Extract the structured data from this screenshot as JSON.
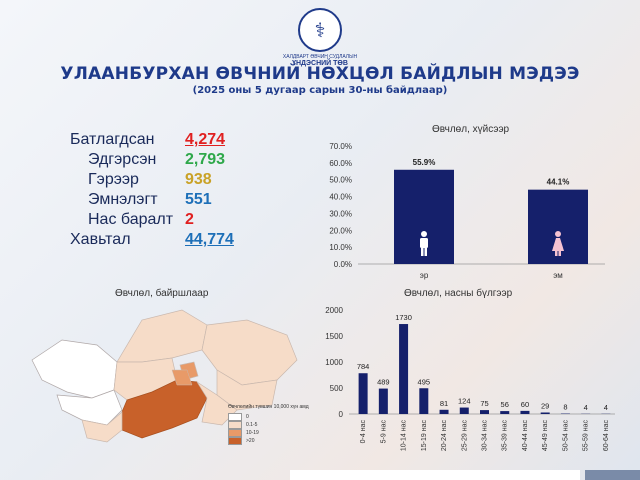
{
  "header": {
    "logo_line1": "ХАЛДВАРТ ӨВЧИН СУДЛАЛЫН",
    "logo_line2": "ҮНДЭСНИЙ ТӨВ",
    "title": "УЛААНБУРХАН ӨВЧНИЙ НӨХЦӨЛ БАЙДЛЫН МЭДЭЭ",
    "subtitle": "(2025 оны 5 дугаар сарын 30-ны байдлаар)"
  },
  "stats": [
    {
      "label": "Батлагдсан",
      "value": "4,274",
      "color": "#e02020",
      "indent": false
    },
    {
      "label": "Эдгэрсэн",
      "value": "2,793",
      "color": "#2ea84a",
      "indent": true
    },
    {
      "label": "Гэрээр",
      "value": "938",
      "color": "#c9a227",
      "indent": true
    },
    {
      "label": "Эмнэлэгт",
      "value": "551",
      "color": "#1d6fb8",
      "indent": true
    },
    {
      "label": "Нас баралт",
      "value": "2",
      "color": "#e02020",
      "indent": true
    },
    {
      "label": "Хавьтал",
      "value": "44,774",
      "color": "#1d6fb8",
      "indent": false
    }
  ],
  "map": {
    "title": "Өвчлөл, байршлаар",
    "legend_title": "Өвчлөлийн түвшин 10,000 хүн амд",
    "legend": [
      {
        "label": "0",
        "color": "#ffffff"
      },
      {
        "label": "0.1-5",
        "color": "#f6dcc8"
      },
      {
        "label": "10-19",
        "color": "#e89a68"
      },
      {
        "label": ">20",
        "color": "#c8612a"
      }
    ]
  },
  "chart_data": [
    {
      "type": "bar",
      "title": "Өвчлөл, хүйсээр",
      "categories": [
        "эр",
        "эм"
      ],
      "values": [
        55.9,
        44.1
      ],
      "data_labels": [
        "55.9%",
        "44.1%"
      ],
      "icons": [
        "male-icon",
        "female-icon"
      ],
      "yticks": [
        "70.0%",
        "60.0%",
        "50.0%",
        "40.0%",
        "30.0%",
        "20.0%",
        "10.0%",
        "0.0%"
      ],
      "ylim": [
        0,
        70
      ],
      "grid": false,
      "bar_color": "#15206b"
    },
    {
      "type": "bar",
      "title": "Өвчлөл, насны бүлгээр",
      "categories": [
        "0-4 нас",
        "5-9 нас",
        "10-14 нас",
        "15-19 нас",
        "20-24 нас",
        "25-29 нас",
        "30-34 нас",
        "35-39 нас",
        "40-44 нас",
        "45-49 нас",
        "50-54 нас",
        "55-59 нас",
        "60-64 нас"
      ],
      "values": [
        784,
        489,
        1730,
        495,
        81,
        124,
        75,
        56,
        60,
        29,
        8,
        4,
        4
      ],
      "yticks": [
        "2000",
        "1500",
        "1000",
        "500",
        "0"
      ],
      "ylim": [
        0,
        2000
      ],
      "grid": false,
      "bar_color": "#15206b"
    }
  ]
}
